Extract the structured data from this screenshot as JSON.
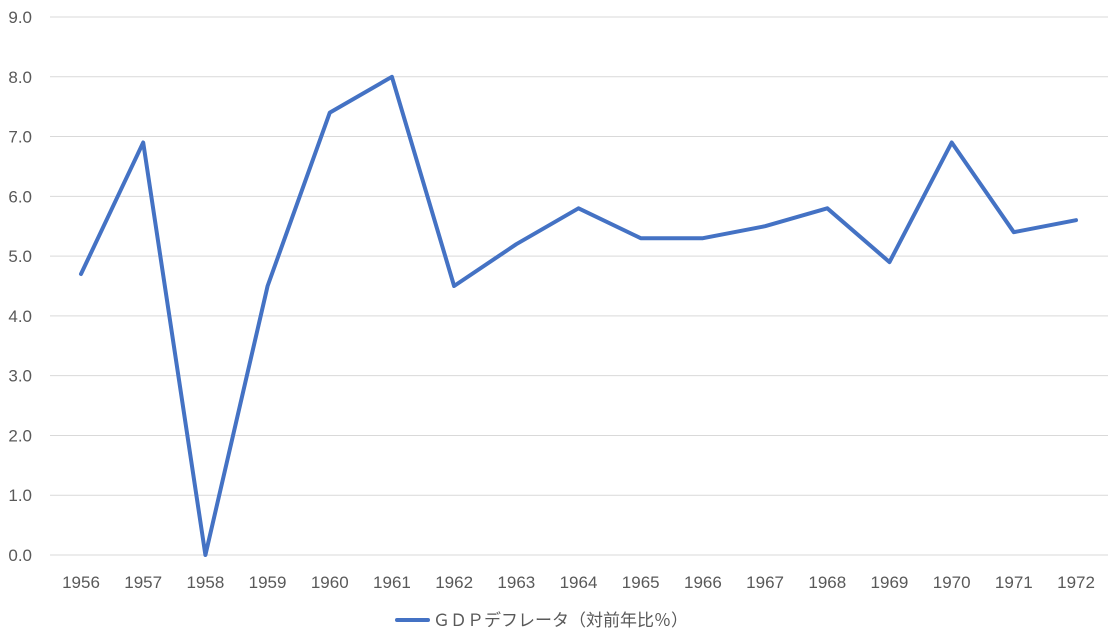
{
  "chart_data": {
    "type": "line",
    "title": "",
    "xlabel": "",
    "ylabel": "",
    "categories": [
      "1956",
      "1957",
      "1958",
      "1959",
      "1960",
      "1961",
      "1962",
      "1963",
      "1964",
      "1965",
      "1966",
      "1967",
      "1968",
      "1969",
      "1970",
      "1971",
      "1972"
    ],
    "series": [
      {
        "name": "ＧＤＰデフレータ（対前年比％）",
        "values": [
          4.7,
          6.9,
          0.0,
          4.5,
          7.4,
          8.0,
          4.5,
          5.2,
          5.8,
          5.3,
          5.3,
          5.5,
          5.8,
          4.9,
          6.9,
          5.4,
          5.6
        ],
        "color": "#4472C4"
      }
    ],
    "ylim": [
      0,
      9
    ],
    "yticks": [
      "0.0",
      "1.0",
      "2.0",
      "3.0",
      "4.0",
      "5.0",
      "6.0",
      "7.0",
      "8.0",
      "9.0"
    ],
    "grid": true,
    "gridColor": "#D9D9D9",
    "legend": "bottom-center"
  }
}
